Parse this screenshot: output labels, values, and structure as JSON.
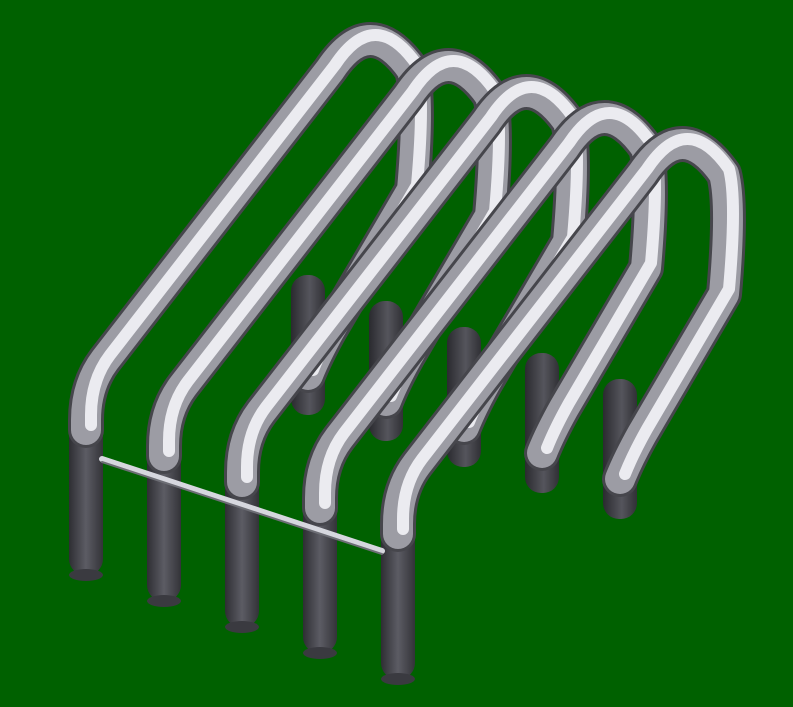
{
  "scene": {
    "subject": "",
    "background_color": "#006100",
    "tube_highlight_color": "#f4f4f8",
    "tube_midtone_color": "#9c9ca4",
    "tube_shadow_color": "#3a3a40",
    "crossbar_color": "#cfd0d8",
    "loop_count": 5
  }
}
